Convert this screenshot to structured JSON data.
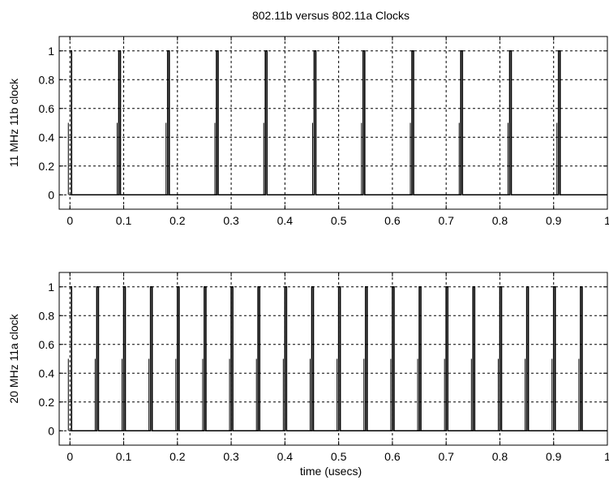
{
  "figure_title": "802.11b versus 802.11a Clocks",
  "colors": {
    "background": "#ffffff",
    "axes": "#000000",
    "line": "#000000",
    "grid": "#000000"
  },
  "chart_data": [
    {
      "type": "line",
      "title": "802.11b versus 802.11a Clocks",
      "xlabel": "",
      "ylabel": "11 MHz 11b clock",
      "xlim": [
        -0.02,
        1.0
      ],
      "ylim": [
        -0.1,
        1.1
      ],
      "xticks": [
        0,
        0.1,
        0.2,
        0.3,
        0.4,
        0.5,
        0.6,
        0.7,
        0.8,
        0.9,
        1
      ],
      "xtick_labels": [
        "0",
        "0.1",
        "0.2",
        "0.3",
        "0.4",
        "0.5",
        "0.6",
        "0.7",
        "0.8",
        "0.9",
        "1"
      ],
      "yticks": [
        0,
        0.2,
        0.4,
        0.6,
        0.8,
        1
      ],
      "ytick_labels": [
        "0",
        "0.2",
        "0.4",
        "0.6",
        "0.8",
        "1"
      ],
      "grid": true,
      "series": [
        {
          "frequency_mhz": 11,
          "period_usecs": 0.0909,
          "pulse_width_usecs": 0.003,
          "rising_edges_usecs": [
            0,
            0.0909,
            0.1818,
            0.2727,
            0.3636,
            0.4545,
            0.5455,
            0.6364,
            0.7273,
            0.8182,
            0.9091
          ],
          "values": [
            0,
            1
          ],
          "half_level_marker": 0.5
        }
      ]
    },
    {
      "type": "line",
      "title": "",
      "xlabel": "time (usecs)",
      "ylabel": "20 MHz 11a clock",
      "xlim": [
        -0.02,
        1.0
      ],
      "ylim": [
        -0.1,
        1.1
      ],
      "xticks": [
        0,
        0.1,
        0.2,
        0.3,
        0.4,
        0.5,
        0.6,
        0.7,
        0.8,
        0.9,
        1
      ],
      "xtick_labels": [
        "0",
        "0.1",
        "0.2",
        "0.3",
        "0.4",
        "0.5",
        "0.6",
        "0.7",
        "0.8",
        "0.9",
        "1"
      ],
      "yticks": [
        0,
        0.2,
        0.4,
        0.6,
        0.8,
        1
      ],
      "ytick_labels": [
        "0",
        "0.2",
        "0.4",
        "0.6",
        "0.8",
        "1"
      ],
      "grid": true,
      "series": [
        {
          "frequency_mhz": 20,
          "period_usecs": 0.05,
          "pulse_width_usecs": 0.003,
          "rising_edges_usecs": [
            0,
            0.05,
            0.1,
            0.15,
            0.2,
            0.25,
            0.3,
            0.35,
            0.4,
            0.45,
            0.5,
            0.55,
            0.6,
            0.65,
            0.7,
            0.75,
            0.8,
            0.85,
            0.9,
            0.95
          ],
          "values": [
            0,
            1
          ],
          "half_level_marker": 0.5
        }
      ]
    }
  ]
}
